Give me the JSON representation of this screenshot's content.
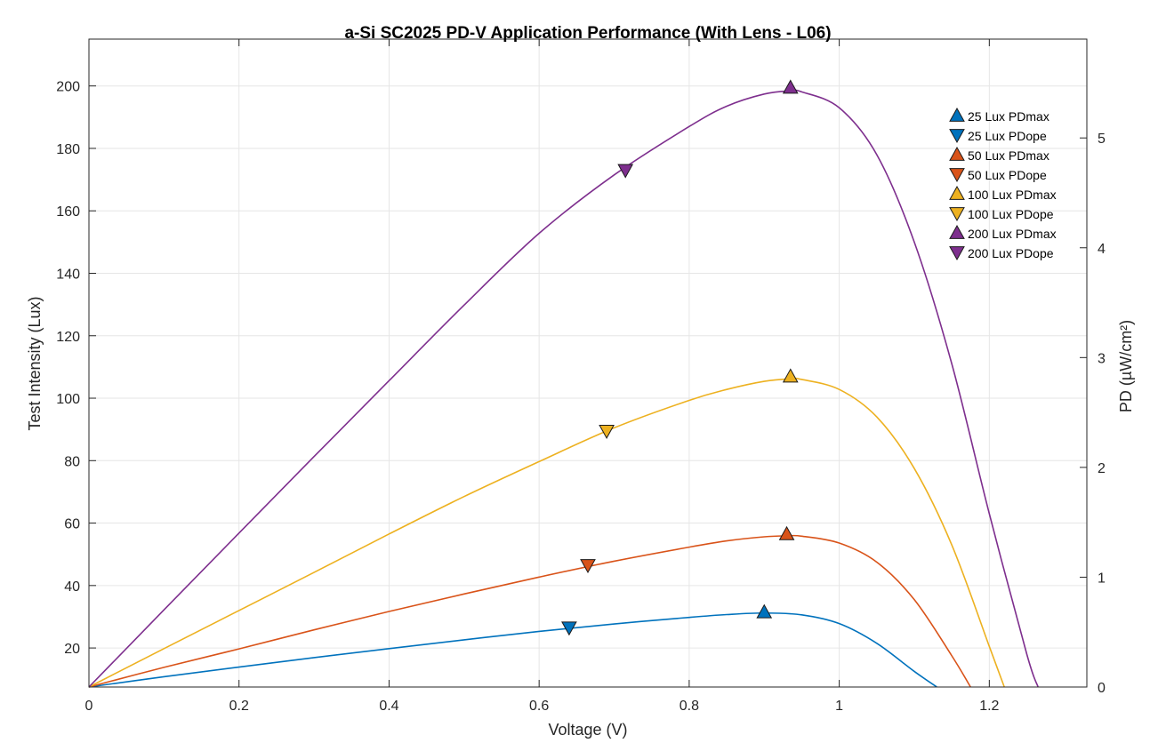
{
  "chart_data": {
    "type": "line",
    "title": "a-Si SC2025 PD-V Application Performance (With Lens - L06)",
    "xlabel": "Voltage (V)",
    "ylabel_left": "Test Intensity (Lux)",
    "ylabel_right": "PD (µW/cm²)",
    "xlim": [
      0,
      1.33
    ],
    "ylim_left": [
      7.5,
      215
    ],
    "ylim_right": [
      0,
      5.9
    ],
    "x_ticks": [
      0,
      0.2,
      0.4,
      0.6,
      0.8,
      1,
      1.2
    ],
    "x_tick_labels": [
      "0",
      "0.2",
      "0.4",
      "0.6",
      "0.8",
      "1",
      "1.2"
    ],
    "y_left_ticks": [
      20,
      40,
      60,
      80,
      100,
      120,
      140,
      160,
      180,
      200
    ],
    "y_left_tick_labels": [
      "20",
      "40",
      "60",
      "80",
      "100",
      "120",
      "140",
      "160",
      "180",
      "200"
    ],
    "y_right_ticks": [
      0,
      1,
      2,
      3,
      4,
      5
    ],
    "y_right_tick_labels": [
      "0",
      "1",
      "2",
      "3",
      "4",
      "5"
    ],
    "grid": true,
    "legend_position": "top-right",
    "series": [
      {
        "name": "25 Lux",
        "color": "#0072BD",
        "x": [
          0,
          0.1,
          0.2,
          0.3,
          0.4,
          0.5,
          0.6,
          0.7,
          0.8,
          0.85,
          0.9,
          0.95,
          1.0,
          1.05,
          1.1,
          1.13
        ],
        "y": [
          7.5,
          10.8,
          13.9,
          16.9,
          19.8,
          22.6,
          25.3,
          27.7,
          29.8,
          30.7,
          31.2,
          30.6,
          27.8,
          21.5,
          12.5,
          7.5
        ],
        "pdmax": {
          "label": "25 Lux PDmax",
          "x": 0.9,
          "y": 31.5
        },
        "pdope": {
          "label": "25 Lux PDope",
          "x": 0.64,
          "y": 26.5
        }
      },
      {
        "name": "50 Lux",
        "color": "#D95319",
        "x": [
          0,
          0.1,
          0.2,
          0.3,
          0.4,
          0.5,
          0.6,
          0.7,
          0.8,
          0.85,
          0.9,
          0.93,
          0.95,
          1.0,
          1.05,
          1.1,
          1.15,
          1.175
        ],
        "y": [
          7.5,
          13.8,
          19.7,
          25.8,
          31.7,
          37.3,
          42.7,
          47.8,
          52.3,
          54.3,
          55.6,
          55.9,
          55.8,
          53.6,
          47.5,
          35.5,
          17.5,
          7.5
        ],
        "pdmax": {
          "label": "50 Lux PDmax",
          "x": 0.93,
          "y": 56.5
        },
        "pdope": {
          "label": "50 Lux PDope",
          "x": 0.665,
          "y": 46.5
        }
      },
      {
        "name": "100 Lux",
        "color": "#EDB120",
        "x": [
          0,
          0.1,
          0.2,
          0.3,
          0.4,
          0.5,
          0.6,
          0.7,
          0.8,
          0.85,
          0.9,
          0.935,
          0.95,
          1.0,
          1.05,
          1.1,
          1.15,
          1.2,
          1.22
        ],
        "y": [
          7.5,
          19.8,
          32.0,
          44.2,
          56.5,
          68.5,
          79.7,
          90.5,
          99.3,
          102.8,
          105.4,
          106.2,
          106.0,
          102.8,
          94.0,
          77.5,
          53.0,
          20.5,
          7.5
        ],
        "pdmax": {
          "label": "100 Lux PDmax",
          "x": 0.935,
          "y": 107
        },
        "pdope": {
          "label": "100 Lux PDope",
          "x": 0.69,
          "y": 89.5
        }
      },
      {
        "name": "200 Lux",
        "color": "#7E2F8E",
        "x": [
          0,
          0.1,
          0.2,
          0.3,
          0.4,
          0.5,
          0.6,
          0.7,
          0.8,
          0.85,
          0.9,
          0.935,
          0.95,
          1.0,
          1.05,
          1.1,
          1.15,
          1.2,
          1.25,
          1.265
        ],
        "y": [
          7.5,
          32.2,
          56.8,
          81.3,
          105.6,
          129.8,
          152.8,
          171.5,
          187.0,
          193.5,
          197.4,
          198.4,
          198.1,
          193.0,
          178.0,
          150.0,
          111.0,
          63.0,
          18.0,
          7.5
        ],
        "pdmax": {
          "label": "200 Lux PDmax",
          "x": 0.935,
          "y": 199.5
        },
        "pdope": {
          "label": "200 Lux PDope",
          "x": 0.715,
          "y": 173
        }
      }
    ]
  }
}
